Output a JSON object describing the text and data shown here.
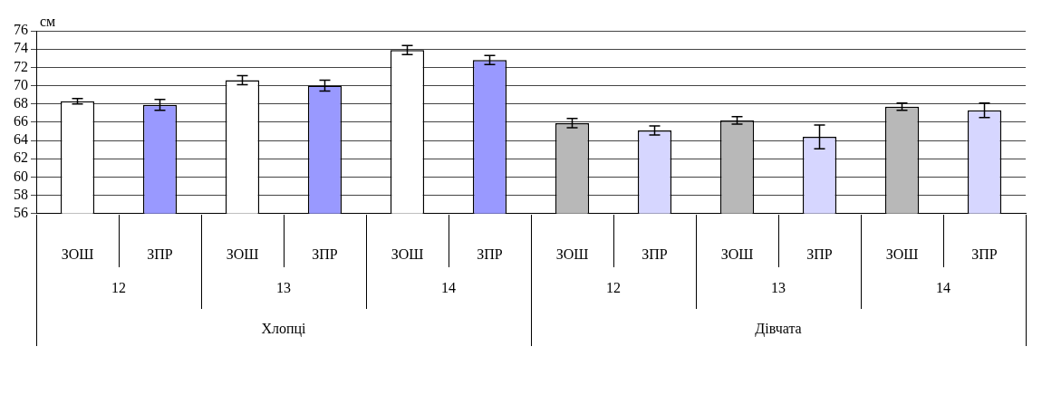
{
  "chart_data": {
    "type": "bar",
    "ylabel": "см",
    "categories": [
      "ЗОШ",
      "ЗПР",
      "ЗОШ",
      "ЗПР",
      "ЗОШ",
      "ЗПР",
      "ЗОШ",
      "ЗПР",
      "ЗОШ",
      "ЗПР",
      "ЗОШ",
      "ЗПР"
    ],
    "values": [
      68.3,
      67.9,
      70.6,
      70.0,
      73.9,
      72.8,
      65.9,
      65.1,
      66.2,
      64.4,
      67.7,
      67.3
    ],
    "errors": [
      0.3,
      0.6,
      0.5,
      0.6,
      0.5,
      0.5,
      0.5,
      0.5,
      0.4,
      1.3,
      0.4,
      0.8
    ],
    "colors": [
      "#ffffff",
      "#9999ff",
      "#ffffff",
      "#9999ff",
      "#ffffff",
      "#9999ff",
      "#b8b8b8",
      "#d6d6ff",
      "#b8b8b8",
      "#d6d6ff",
      "#b8b8b8",
      "#d6d6ff"
    ],
    "annotations": [
      "12",
      "13",
      "14",
      "12",
      "13",
      "14",
      "Хлопці",
      "Дівчата"
    ],
    "ylim": [
      56,
      76
    ],
    "yticks": [
      56,
      58,
      60,
      62,
      64,
      66,
      68,
      70,
      72,
      74,
      76
    ],
    "grid": true,
    "legend": false
  }
}
